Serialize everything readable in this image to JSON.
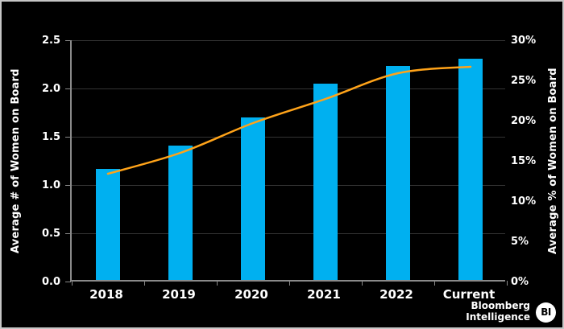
{
  "chart_data": {
    "type": "bar+line combo",
    "title": "",
    "categories": [
      "2018",
      "2019",
      "2020",
      "2021",
      "2022",
      "Current"
    ],
    "series": [
      {
        "name": "Average # of Women on Board",
        "type": "bar",
        "axis": "left",
        "color": "#00B0F0",
        "values": [
          1.15,
          1.39,
          1.68,
          2.03,
          2.22,
          2.29
        ]
      },
      {
        "name": "Average % of Women on Board",
        "type": "line",
        "axis": "right",
        "color": "#FFA319",
        "values": [
          13.4,
          16.0,
          19.7,
          22.7,
          25.9,
          26.7
        ]
      }
    ],
    "left_axis": {
      "label": "Average # of Women on Board",
      "ticks": [
        "0.0",
        "0.5",
        "1.0",
        "1.5",
        "2.0",
        "2.5"
      ],
      "min": 0,
      "max": 2.5
    },
    "right_axis": {
      "label": "Average % of Women on Board",
      "ticks": [
        "0%",
        "5%",
        "10%",
        "15%",
        "20%",
        "25%",
        "30%"
      ],
      "min": 0,
      "max": 30
    },
    "grid": true,
    "legend": "none",
    "background": "#000000"
  },
  "branding": {
    "line1": "Bloomberg",
    "line2": "Intelligence",
    "badge": "BI"
  }
}
